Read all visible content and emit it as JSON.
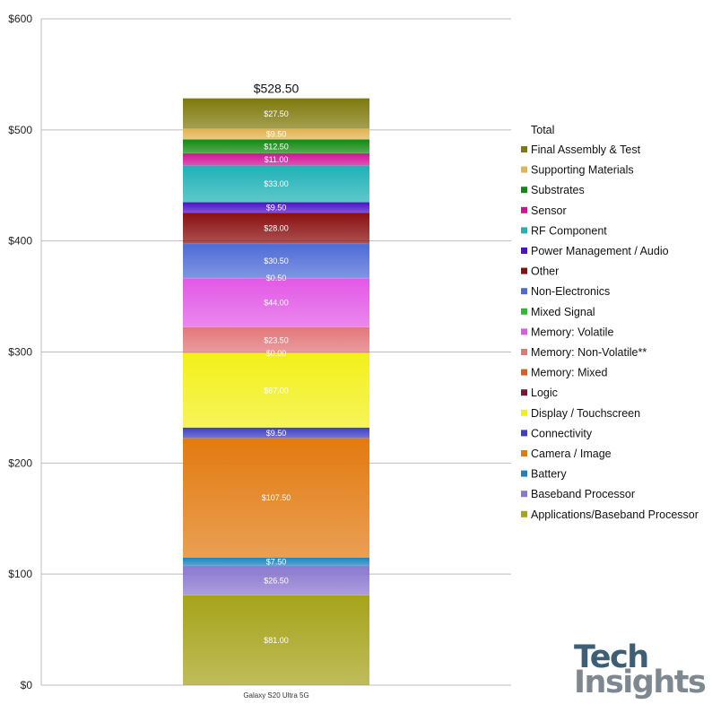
{
  "chart_data": {
    "type": "bar",
    "stacked": true,
    "categories": [
      "Galaxy S20 Ultra  5G"
    ],
    "total_label": "$528.50",
    "ylim": [
      0,
      600
    ],
    "yticks": [
      "$0",
      "$100",
      "$200",
      "$300",
      "$400",
      "$500",
      "$600"
    ],
    "ytick_values": [
      0,
      100,
      200,
      300,
      400,
      500,
      600
    ],
    "grid": true,
    "legend_title": "Total",
    "legend_position": "right",
    "series": [
      {
        "name": "Applications/Baseband Processor",
        "value": 81.0,
        "label": "$81.00",
        "color": "#a6a31a"
      },
      {
        "name": "Baseband Processor",
        "value": 26.5,
        "label": "$26.50",
        "color": "#8a78cf"
      },
      {
        "name": "Battery",
        "value": 7.5,
        "label": "$7.50",
        "color": "#1a83bf"
      },
      {
        "name": "Camera / Image",
        "value": 107.5,
        "label": "$107.50",
        "color": "#e27a10"
      },
      {
        "name": "Connectivity",
        "value": 9.5,
        "label": "$9.50",
        "color": "#3e3ec2"
      },
      {
        "name": "Display / Touchscreen",
        "value": 67.0,
        "label": "$67.00",
        "color": "#f2f01a"
      },
      {
        "name": "Logic",
        "value": 0.0,
        "label": "",
        "color": "#7a1738"
      },
      {
        "name": "Memory: Mixed",
        "value": 0.0,
        "label": "$0.00",
        "color": "#d6621e"
      },
      {
        "name": "Memory: Non-Volatile**",
        "value": 23.5,
        "label": "$23.50",
        "color": "#e2777a"
      },
      {
        "name": "Memory: Volatile",
        "value": 44.0,
        "label": "$44.00",
        "color": "#e258e6"
      },
      {
        "name": "Mixed Signal",
        "value": 0.0,
        "label": "",
        "color": "#2fba2f"
      },
      {
        "name": "Non-Electronics",
        "value": 0.5,
        "label": "$0.50",
        "color": "#4d6bd6"
      },
      {
        "name": "Other",
        "value": 30.5,
        "label": "$30.50",
        "color": "#4d6bd6"
      },
      {
        "name": "Power Management / Audio",
        "value": 28.0,
        "label": "$28.00",
        "color": "#8a0f0f"
      },
      {
        "name": "RF Component",
        "value": 9.5,
        "label": "$9.50",
        "color": "#4a12c6"
      },
      {
        "name": "Sensor",
        "value": 33.0,
        "label": "$33.00",
        "color": "#1fb2b6"
      },
      {
        "name": "Substrates",
        "value": 11.0,
        "label": "$11.00",
        "color": "#cf1296"
      },
      {
        "name": "Supporting Materials",
        "value": 12.5,
        "label": "$12.50",
        "color": "#108a10"
      },
      {
        "name": "Final Assembly & Test",
        "value": 9.5,
        "label": "$9.50",
        "color": "#e2b452"
      },
      {
        "name": "Final Assembly & Test (top)",
        "value": 27.5,
        "label": "$27.50",
        "color": "#7f7a0c"
      }
    ],
    "legend": [
      {
        "name": "Final Assembly & Test",
        "color": "#7f7a0c"
      },
      {
        "name": "Supporting Materials",
        "color": "#e2b452"
      },
      {
        "name": "Substrates",
        "color": "#108a10"
      },
      {
        "name": "Sensor",
        "color": "#cf1296"
      },
      {
        "name": "RF Component",
        "color": "#1fb2b6"
      },
      {
        "name": "Power Management / Audio",
        "color": "#4a12c6"
      },
      {
        "name": "Other",
        "color": "#8a0f0f"
      },
      {
        "name": "Non-Electronics",
        "color": "#4d6bd6"
      },
      {
        "name": "Mixed Signal",
        "color": "#2fba2f"
      },
      {
        "name": "Memory: Volatile",
        "color": "#e258e6"
      },
      {
        "name": "Memory: Non-Volatile**",
        "color": "#e2777a"
      },
      {
        "name": "Memory: Mixed",
        "color": "#d6621e"
      },
      {
        "name": "Logic",
        "color": "#7a1738"
      },
      {
        "name": "Display / Touchscreen",
        "color": "#f2f01a"
      },
      {
        "name": "Connectivity",
        "color": "#3e3ec2"
      },
      {
        "name": "Camera / Image",
        "color": "#e27a10"
      },
      {
        "name": "Battery",
        "color": "#1a83bf"
      },
      {
        "name": "Baseband Processor",
        "color": "#8a78cf"
      },
      {
        "name": "Applications/Baseband Processor",
        "color": "#a6a31a"
      }
    ]
  },
  "logo": {
    "line1": "Tech",
    "line2": "Insights"
  }
}
